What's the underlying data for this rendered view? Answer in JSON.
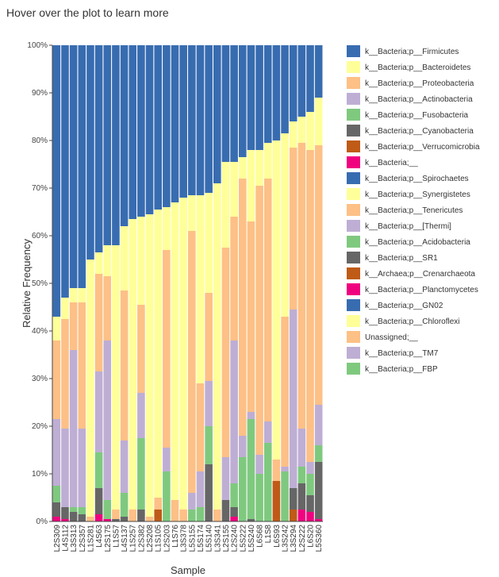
{
  "chart_data": {
    "type": "stacked_bar",
    "title": "Hover over the plot to learn more",
    "x_label": "Sample",
    "y_label": "Relative Frequency",
    "categories": [
      "L2S309",
      "L4S112",
      "L3S313",
      "L2S357",
      "L1S281",
      "L4S63",
      "L2S175",
      "L1S57",
      "L4S137",
      "L1S257",
      "L2S382",
      "L2S208",
      "L1S105",
      "L2S203",
      "L1S76",
      "L3S378",
      "L5S155",
      "L5S174",
      "L5S140",
      "L3S341",
      "L2S155",
      "L2S240",
      "L5S222",
      "L5S240",
      "L6S68",
      "L1S8",
      "L6S93",
      "L3S242",
      "L3S294",
      "L2S222",
      "L6S20",
      "L5S360"
    ],
    "ylim": [
      0,
      100
    ],
    "yticks": [
      {
        "value": 0,
        "label": "0%"
      },
      {
        "value": 10,
        "label": "10%"
      },
      {
        "value": 20,
        "label": "20%"
      },
      {
        "value": 30,
        "label": "30%"
      },
      {
        "value": 40,
        "label": "40%"
      },
      {
        "value": 50,
        "label": "50%"
      },
      {
        "value": 60,
        "label": "60%"
      },
      {
        "value": 70,
        "label": "70%"
      },
      {
        "value": 80,
        "label": "80%"
      },
      {
        "value": 90,
        "label": "90%"
      },
      {
        "value": 100,
        "label": "100%"
      }
    ],
    "series": [
      {
        "name": "k__Bacteria;p__Firmicutes",
        "color": "#386cb0",
        "values": [
          57,
          53,
          51,
          51,
          45,
          43.5,
          42,
          42,
          38,
          36.5,
          36,
          35.5,
          34.5,
          34,
          33,
          32,
          31.5,
          31.5,
          31,
          29,
          24.5,
          24.5,
          23.5,
          22,
          22,
          20.5,
          20,
          18.5,
          16,
          15,
          14,
          11
        ]
      },
      {
        "name": "k__Bacteria;p__Bacteroidetes",
        "color": "#ffff99",
        "values": [
          5,
          4.5,
          3,
          3,
          54,
          4.5,
          6.5,
          55.5,
          13.5,
          61,
          18.5,
          63.5,
          60.5,
          9,
          62.5,
          65.5,
          7.5,
          39.5,
          21,
          68.5,
          18,
          11.5,
          4.5,
          15,
          7.5,
          7.5,
          67,
          38.5,
          5.5,
          5.5,
          8,
          10
        ]
      },
      {
        "name": "k__Bacteria;p__Proteobacteria",
        "color": "#fdc086",
        "values": [
          16.5,
          23,
          10,
          26.5,
          1,
          20.5,
          13.5,
          2,
          31.5,
          2.5,
          18.5,
          1,
          2.5,
          41.5,
          4.5,
          2.5,
          55,
          18.5,
          18.5,
          2.5,
          44,
          26,
          54,
          40,
          56.5,
          51,
          4.5,
          31.5,
          34,
          60,
          65.5,
          54.5
        ]
      },
      {
        "name": "k__Bacteria;p__Actinobacteria",
        "color": "#beaed4",
        "values": [
          14,
          16.5,
          33,
          16.5,
          0,
          17,
          33.5,
          0,
          11,
          0,
          9.5,
          0,
          0,
          5,
          0,
          0,
          3.5,
          7.5,
          9.5,
          0,
          9,
          30,
          4.5,
          1.5,
          4,
          4.5,
          0,
          1,
          37.5,
          8,
          2.5,
          8.5
        ]
      },
      {
        "name": "k__Bacteria;p__Fusobacteria",
        "color": "#7fc97f",
        "values": [
          3.5,
          0,
          1,
          1.5,
          0,
          7.5,
          4,
          0,
          5,
          0,
          15,
          0,
          0,
          10.5,
          0,
          0,
          2.5,
          3,
          8,
          0,
          0,
          5,
          13.5,
          21,
          10,
          16.5,
          0,
          10.5,
          0,
          3.5,
          4.5,
          3.5
        ]
      },
      {
        "name": "k__Bacteria;p__Cyanobacteria",
        "color": "#666666",
        "values": [
          3,
          2.5,
          2,
          1.5,
          0,
          5.5,
          0,
          0.5,
          1,
          0,
          2.5,
          0,
          0,
          0,
          0,
          0,
          0,
          0,
          12,
          0,
          4.5,
          2,
          0,
          0.5,
          0,
          0,
          0,
          0,
          4.5,
          5.5,
          3.5,
          12
        ]
      },
      {
        "name": "k__Bacteria;p__Verrucomicrobia",
        "color": "#bf5b17",
        "values": [
          0,
          0,
          0,
          0,
          0,
          0,
          0,
          0,
          0,
          0,
          0,
          0,
          2.5,
          0,
          0,
          0,
          0,
          0,
          0,
          0,
          0,
          0,
          0,
          0,
          0,
          0,
          8.5,
          0,
          2.5,
          0,
          0,
          0
        ]
      },
      {
        "name": "k__Bacteria;__",
        "color": "#f0027f",
        "values": [
          1,
          0.5,
          0,
          0,
          0,
          1.5,
          0.5,
          0,
          0,
          0,
          0,
          0,
          0,
          0,
          0,
          0,
          0,
          0,
          0,
          0,
          0,
          1,
          0,
          0,
          0,
          0,
          0,
          0,
          0,
          2.5,
          2,
          0.5
        ]
      },
      {
        "name": "k__Bacteria;p__Spirochaetes",
        "color": "#386cb0",
        "values": [
          0,
          0,
          0,
          0,
          0,
          0,
          0,
          0,
          0,
          0,
          0,
          0,
          0,
          0,
          0,
          0,
          0,
          0,
          0,
          0,
          0,
          0,
          0,
          0,
          0,
          0,
          0,
          0,
          0,
          0,
          0,
          0
        ]
      },
      {
        "name": "k__Bacteria;p__Synergistetes",
        "color": "#ffff99",
        "values": [
          0,
          0,
          0,
          0,
          0,
          0,
          0,
          0,
          0,
          0,
          0,
          0,
          0,
          0,
          0,
          0,
          0,
          0,
          0,
          0,
          0,
          0,
          0,
          0,
          0,
          0,
          0,
          0,
          0,
          0,
          0,
          0
        ]
      },
      {
        "name": "k__Bacteria;p__Tenericutes",
        "color": "#fdc086",
        "values": [
          0,
          0,
          0,
          0,
          0,
          0,
          0,
          0,
          0,
          0,
          0,
          0,
          0,
          0,
          0,
          0,
          0,
          0,
          0,
          0,
          0,
          0,
          0,
          0,
          0,
          0,
          0,
          0,
          0,
          0,
          0,
          0
        ]
      },
      {
        "name": "k__Bacteria;p__[Thermi]",
        "color": "#beaed4",
        "values": [
          0,
          0,
          0,
          0,
          0,
          0,
          0,
          0,
          0,
          0,
          0,
          0,
          0,
          0,
          0,
          0,
          0,
          0,
          0,
          0,
          0,
          0,
          0,
          0,
          0,
          0,
          0,
          0,
          0,
          0,
          0,
          0
        ]
      },
      {
        "name": "k__Bacteria;p__Acidobacteria",
        "color": "#7fc97f",
        "values": [
          0,
          0,
          0,
          0,
          0,
          0,
          0,
          0,
          0,
          0,
          0,
          0,
          0,
          0,
          0,
          0,
          0,
          0,
          0,
          0,
          0,
          0,
          0,
          0,
          0,
          0,
          0,
          0,
          0,
          0,
          0,
          0
        ]
      },
      {
        "name": "k__Bacteria;p__SR1",
        "color": "#666666",
        "values": [
          0,
          0,
          0,
          0,
          0,
          0,
          0,
          0,
          0,
          0,
          0,
          0,
          0,
          0,
          0,
          0,
          0,
          0,
          0,
          0,
          0,
          0,
          0,
          0,
          0,
          0,
          0,
          0,
          0,
          0,
          0,
          0
        ]
      },
      {
        "name": "k__Archaea;p__Crenarchaeota",
        "color": "#bf5b17",
        "values": [
          0,
          0,
          0,
          0,
          0,
          0,
          0,
          0,
          0,
          0,
          0,
          0,
          0,
          0,
          0,
          0,
          0,
          0,
          0,
          0,
          0,
          0,
          0,
          0,
          0,
          0,
          0,
          0,
          0,
          0,
          0,
          0
        ]
      },
      {
        "name": "k__Bacteria;p__Planctomycetes",
        "color": "#f0027f",
        "values": [
          0,
          0,
          0,
          0,
          0,
          0,
          0,
          0,
          0,
          0,
          0,
          0,
          0,
          0,
          0,
          0,
          0,
          0,
          0,
          0,
          0,
          0,
          0,
          0,
          0,
          0,
          0,
          0,
          0,
          0,
          0,
          0
        ]
      },
      {
        "name": "k__Bacteria;p__GN02",
        "color": "#386cb0",
        "values": [
          0,
          0,
          0,
          0,
          0,
          0,
          0,
          0,
          0,
          0,
          0,
          0,
          0,
          0,
          0,
          0,
          0,
          0,
          0,
          0,
          0,
          0,
          0,
          0,
          0,
          0,
          0,
          0,
          0,
          0,
          0,
          0
        ]
      },
      {
        "name": "k__Bacteria;p__Chloroflexi",
        "color": "#ffff99",
        "values": [
          0,
          0,
          0,
          0,
          0,
          0,
          0,
          0,
          0,
          0,
          0,
          0,
          0,
          0,
          0,
          0,
          0,
          0,
          0,
          0,
          0,
          0,
          0,
          0,
          0,
          0,
          0,
          0,
          0,
          0,
          0,
          0
        ]
      },
      {
        "name": "Unassigned;__",
        "color": "#fdc086",
        "values": [
          0,
          0,
          0,
          0,
          0,
          0,
          0,
          0,
          0,
          0,
          0,
          0,
          0,
          0,
          0,
          0,
          0,
          0,
          0,
          0,
          0,
          0,
          0,
          0,
          0,
          0,
          0,
          0,
          0,
          0,
          0,
          0
        ]
      },
      {
        "name": "k__Bacteria;p__TM7",
        "color": "#beaed4",
        "values": [
          0,
          0,
          0,
          0,
          0,
          0,
          0,
          0,
          0,
          0,
          0,
          0,
          0,
          0,
          0,
          0,
          0,
          0,
          0,
          0,
          0,
          0,
          0,
          0,
          0,
          0,
          0,
          0,
          0,
          0,
          0,
          0
        ]
      },
      {
        "name": "k__Bacteria;p__FBP",
        "color": "#7fc97f",
        "values": [
          0,
          0,
          0,
          0,
          0,
          0,
          0,
          0,
          0,
          0,
          0,
          0,
          0,
          0,
          0,
          0,
          0,
          0,
          0,
          0,
          0,
          0,
          0,
          0,
          0,
          0,
          0,
          0,
          0,
          0,
          0,
          0
        ]
      }
    ]
  }
}
